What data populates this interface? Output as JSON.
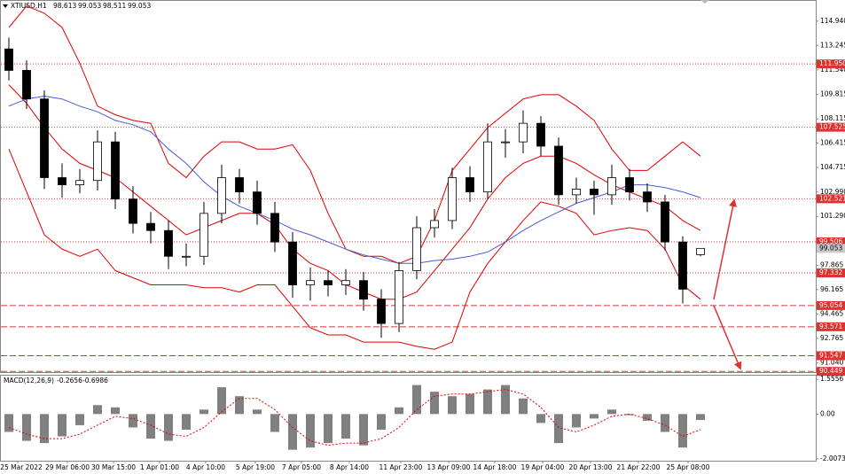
{
  "chart_data": [
    {
      "type": "candlestick",
      "title": "XTIUSD,H1",
      "open": [
        113,
        111.5,
        109.5,
        104,
        103.5,
        103.8,
        106.5,
        102.5,
        100.8,
        100.3,
        98.5,
        98.5,
        101.5,
        104,
        103,
        101.5,
        99.5,
        96.5,
        96.8,
        96.5,
        96.8,
        95.5,
        93.8,
        97.5,
        100.5,
        101,
        104,
        103,
        106.5,
        106.5,
        107.8,
        106.2,
        102.8,
        103.2,
        102.8,
        104,
        103,
        102.3,
        99.5,
        98.613
      ],
      "high": [
        113.8,
        112.2,
        110.1,
        105,
        104.6,
        107.3,
        107.2,
        103.4,
        101.6,
        101,
        99.4,
        102.3,
        104.9,
        104.6,
        103.8,
        102.3,
        100.2,
        97.7,
        97.5,
        97.6,
        97.4,
        96.2,
        98.1,
        101.3,
        101.8,
        104.7,
        104.8,
        107.8,
        107.4,
        108.7,
        108.3,
        106.8,
        104,
        103.8,
        104.9,
        104.6,
        103.6,
        102.8,
        99.9,
        99.053
      ],
      "low": [
        110.8,
        108.8,
        103.2,
        102.6,
        102.9,
        103.1,
        101.8,
        100.1,
        99.4,
        97.6,
        97.8,
        97.9,
        100.8,
        102.2,
        100.7,
        98.8,
        95.6,
        95.4,
        95.7,
        95.8,
        94.7,
        92.8,
        93.2,
        96.9,
        99.8,
        100.4,
        102.3,
        102.5,
        105.4,
        105.7,
        105.5,
        102.1,
        102.2,
        101.4,
        102.1,
        102.4,
        101.6,
        98.9,
        95.2,
        98.511
      ],
      "close": [
        111.5,
        109.5,
        104,
        103.5,
        103.8,
        106.5,
        102.5,
        100.8,
        100.3,
        98.5,
        98.5,
        101.5,
        104,
        103,
        101.5,
        99.5,
        96.5,
        96.8,
        96.5,
        96.8,
        95.5,
        93.8,
        97.5,
        100.5,
        101,
        104,
        103,
        106.5,
        106.5,
        107.8,
        106.2,
        102.8,
        103.2,
        102.8,
        104,
        103,
        102.3,
        99.5,
        96.2,
        99.053
      ],
      "up_color": "#ffffff",
      "down_color": "#000000",
      "lines": [
        {
          "color": "#e00000",
          "values": [
            114.5,
            116,
            115.5,
            114.5,
            112,
            109,
            108.4,
            108,
            107.8,
            105,
            104,
            105.5,
            106.5,
            106.5,
            106,
            106,
            106.3,
            104.5,
            101.5,
            99,
            98.5,
            98.5,
            98,
            98.5,
            101,
            104.5,
            106,
            107.5,
            108.5,
            109.5,
            109.8,
            109.8,
            109,
            108,
            106,
            104.5,
            104.5,
            105.5,
            106.5,
            105.5
          ]
        },
        {
          "color": "#e00000",
          "values": [
            110.5,
            109.2,
            107.5,
            106,
            105,
            104.5,
            104,
            103,
            102,
            101,
            100,
            100.5,
            101,
            101.5,
            101.5,
            100.7,
            99,
            98,
            97.5,
            96.5,
            96,
            95.5,
            95.5,
            96,
            97.5,
            99,
            100.5,
            102.5,
            104,
            105,
            105.5,
            105.5,
            105,
            104.2,
            103.5,
            103,
            102.5,
            102,
            101,
            100.3
          ]
        },
        {
          "color": "#e00000",
          "values": [
            106,
            103,
            100,
            99,
            98.5,
            99,
            97.5,
            97,
            96.5,
            96.5,
            96.5,
            96.3,
            96.3,
            96,
            96.5,
            96.5,
            95,
            93.5,
            93,
            93,
            92.5,
            92.5,
            92.5,
            92.2,
            92,
            92.5,
            96,
            98,
            99.5,
            101,
            102.3,
            102,
            101.5,
            100,
            100.3,
            100.5,
            100.3,
            99,
            96.5,
            95.5
          ]
        },
        {
          "color": "#4a5ad8",
          "values": [
            109,
            109.5,
            109.7,
            109.5,
            109,
            108.6,
            108,
            107.7,
            107.2,
            106,
            105,
            103.7,
            102.7,
            102,
            101.5,
            101,
            100.4,
            100,
            99.5,
            99,
            98.6,
            98.3,
            98,
            98,
            98.2,
            98.3,
            98.5,
            98.8,
            99.5,
            100.3,
            101,
            101.6,
            102.2,
            102.6,
            103,
            103.5,
            103.5,
            103.3,
            103,
            102.6
          ]
        }
      ],
      "levels": [
        {
          "value": 111.95,
          "label": "111.950",
          "style": "dotted"
        },
        {
          "value": 107.525,
          "label": "107.525",
          "style": "dotted"
        },
        {
          "value": 102.521,
          "label": "102.521",
          "style": "dotted"
        },
        {
          "value": 99.506,
          "label": "99.506",
          "style": "dotted"
        },
        {
          "value": 97.332,
          "label": "97.332",
          "style": "dotted"
        },
        {
          "value": 95.054,
          "label": "95.054",
          "style": "dashed"
        },
        {
          "value": 93.571,
          "label": "93.571",
          "style": "dashed"
        },
        {
          "value": 91.547,
          "label": "91.547",
          "style": "dashed"
        },
        {
          "value": 90.449,
          "label": "90.449",
          "style": "dashed"
        }
      ],
      "level_color": "#e03030",
      "xlim": [
        -0.5,
        45.5
      ],
      "ylim": [
        90.4,
        116.36
      ],
      "yticks": [
        {
          "value": 114.94,
          "label": "114.940"
        },
        113.245,
        {
          "value": 111.54,
          "label": "111.540"
        },
        109.815,
        108.115,
        106.415,
        104.715,
        {
          "value": 102.99,
          "label": "102.990"
        },
        {
          "value": 101.29,
          "label": "101.290"
        },
        97.865,
        96.165,
        94.465,
        92.765,
        {
          "value": 91.04,
          "label": "91.040"
        }
      ],
      "xticks": [
        {
          "value": 0.5,
          "label": "25 Mar 2022"
        },
        {
          "value": 3.3,
          "label": "29 Mar 06:00"
        },
        {
          "value": 5.9,
          "label": "30 Mar 15:00"
        },
        {
          "value": 8.5,
          "label": "1 Apr 01:00"
        },
        {
          "value": 11.1,
          "label": "4 Apr 10:00"
        },
        {
          "value": 13.9,
          "label": "5 Apr 19:00"
        },
        {
          "value": 16.5,
          "label": "7 Apr 05:00"
        },
        {
          "value": 19.2,
          "label": "8 Apr 14:00"
        },
        {
          "value": 22.1,
          "label": "11 Apr 23:00"
        },
        {
          "value": 24.8,
          "label": "13 Apr 09:00"
        },
        {
          "value": 27.4,
          "label": "14 Apr 18:00"
        },
        {
          "value": 30.1,
          "label": "19 Apr 04:00"
        },
        {
          "value": 32.8,
          "label": "20 Apr 13:00"
        },
        {
          "value": 35.5,
          "label": "21 Apr 22:00"
        },
        {
          "value": 38.3,
          "label": "25 Apr 08:00"
        }
      ]
    },
    {
      "type": "bar",
      "title": "MACD(12,26,9)",
      "values": [
        -0.8,
        -1.2,
        -1.3,
        -1.0,
        -0.5,
        0.4,
        0.3,
        -0.6,
        -1.1,
        -1.2,
        -0.7,
        0.2,
        1.2,
        0.8,
        0.2,
        -0.8,
        -1.6,
        -1.5,
        -1.3,
        -1.1,
        -1.4,
        -0.7,
        0.3,
        1.3,
        1.0,
        0.8,
        0.9,
        1.1,
        1.3,
        0.7,
        -0.4,
        -1.3,
        -0.6,
        -0.2,
        0.2,
        -0.05,
        -0.3,
        -0.8,
        -1.5,
        -0.2656
      ],
      "color": "#808080",
      "signal": {
        "color": "#e00000",
        "values": [
          -0.6,
          -0.9,
          -1.1,
          -1.1,
          -0.9,
          -0.5,
          -0.1,
          -0.2,
          -0.5,
          -0.9,
          -1.0,
          -0.6,
          0.1,
          0.7,
          0.7,
          0.2,
          -0.6,
          -1.2,
          -1.4,
          -1.3,
          -1.3,
          -1.1,
          -0.6,
          0.2,
          0.8,
          0.9,
          0.9,
          1.0,
          1.1,
          0.9,
          0.3,
          -0.6,
          -0.8,
          -0.5,
          -0.1,
          0.0,
          -0.2,
          -0.5,
          -1.0,
          -0.6986
        ]
      },
      "xlim": [
        -0.5,
        45.5
      ],
      "ylim": [
        -2.09,
        1.72
      ],
      "yticks": [
        1.5556,
        {
          "value": 0,
          "label": "0.00"
        },
        -2.0073
      ]
    }
  ]
}
